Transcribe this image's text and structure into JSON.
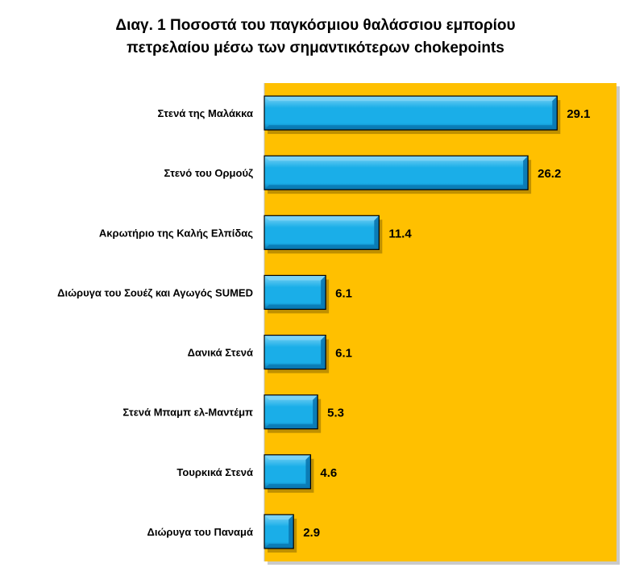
{
  "title_lines": [
    "Διαγ. 1 Ποσοστά του παγκόσμιου θαλάσσιου εμπορίου",
    "πετρελαίου μέσω των σημαντικότερων chokepoints"
  ],
  "colors": {
    "plot_background": "#FFC000",
    "bar_fill": "#1AAEE8",
    "bar_dark": "#0A77B0",
    "bar_light": "#7FD4F6",
    "axis": "#BFBFBF"
  },
  "chart_data": {
    "type": "bar",
    "orientation": "horizontal",
    "title": "Διαγ. 1 Ποσοστά του παγκόσμιου θαλάσσιου εμπορίου πετρελαίου μέσω των σημαντικότερων chokepoints",
    "categories": [
      "Στενά της Μαλάκκα",
      "Στενό του Ορμούζ",
      "Ακρωτήριο της Καλής Ελπίδας",
      "Διώρυγα του Σουέζ και Αγωγός SUMED",
      "Δανικά Στενά",
      "Στενά Μπαμπ ελ-Μαντέμπ",
      "Τουρκικά Στενά",
      "Διώρυγα του Παναμά"
    ],
    "values": [
      29.1,
      26.2,
      11.4,
      6.1,
      6.1,
      5.3,
      4.6,
      2.9
    ],
    "data_labels": [
      "29.1",
      "26.2",
      "11.4",
      "6.1",
      "6.1",
      "5.3",
      "4.6",
      "2.9"
    ],
    "xlim": [
      0,
      35
    ],
    "grid": false,
    "legend": "none",
    "xlabel": "",
    "ylabel": ""
  }
}
